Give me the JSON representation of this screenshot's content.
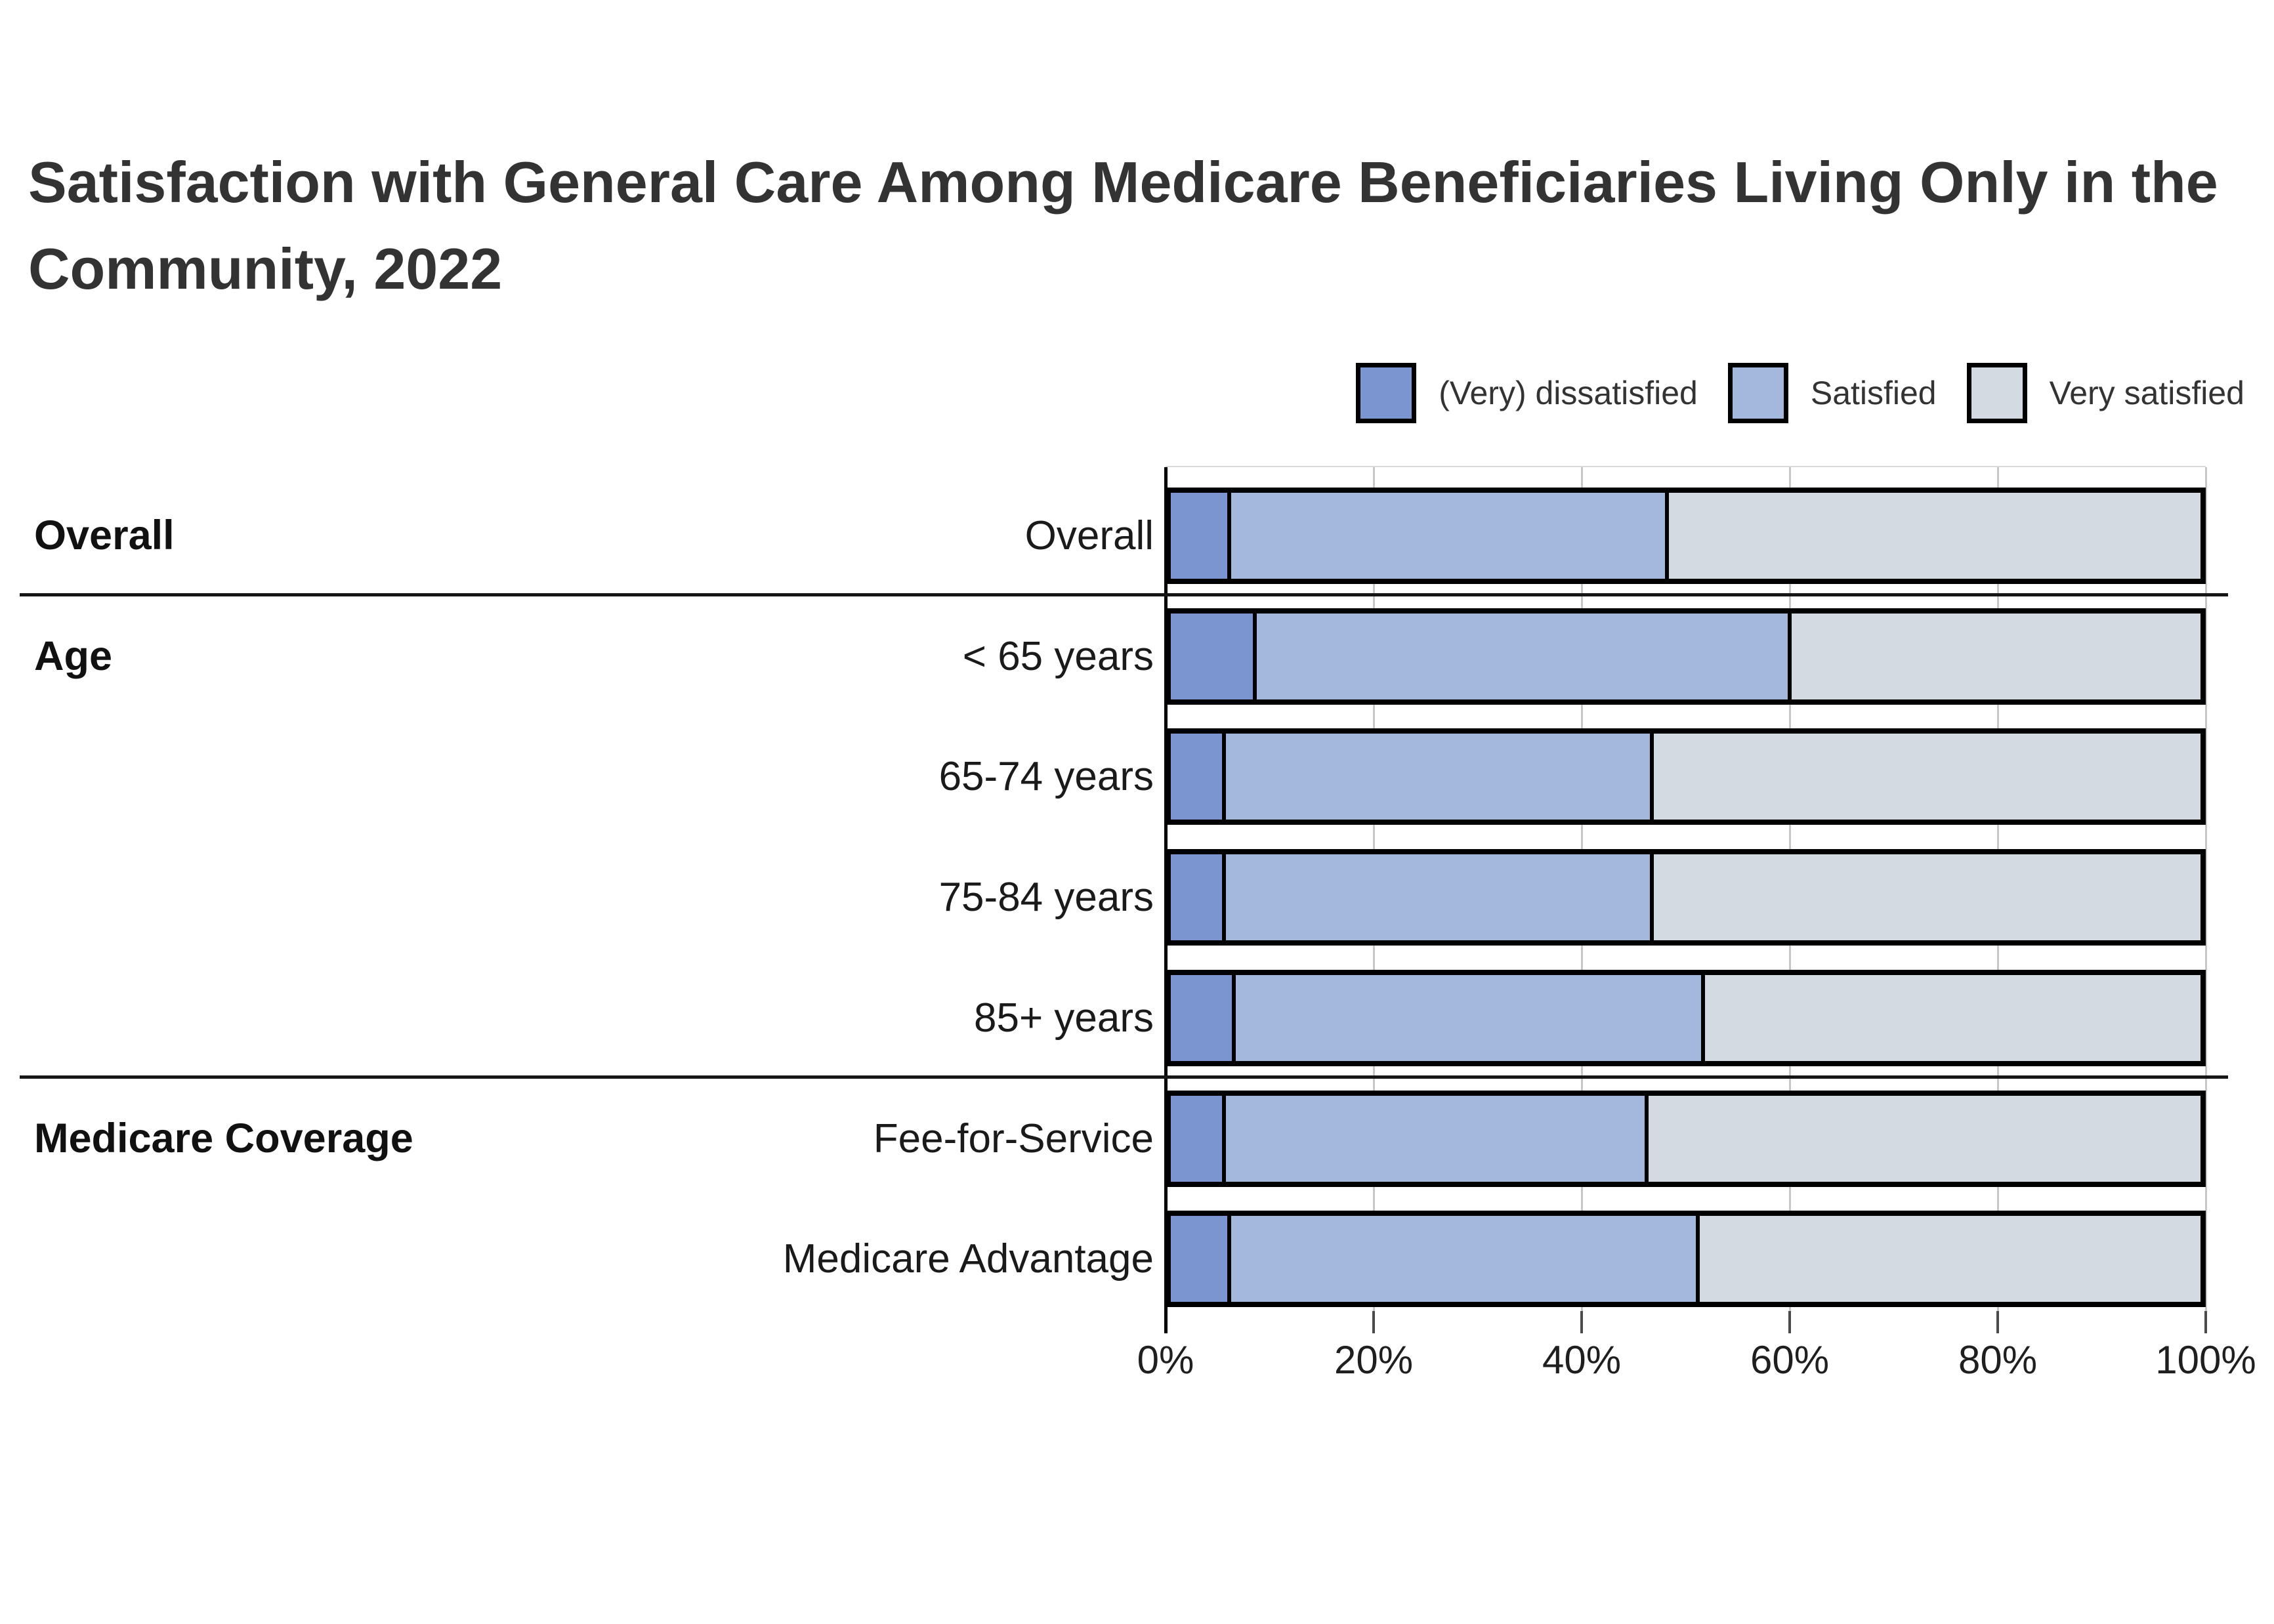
{
  "page": {
    "background": "#ffffff"
  },
  "title": {
    "full": "Satisfaction with General Care Among Medicare Beneficiaries Living Only in the Community, 2022",
    "line1": "Satisfaction with General Care Among Medicare Beneficiaries Living Only in the",
    "line2": "Community, 2022"
  },
  "legend": {
    "items": [
      {
        "label": "(Very) dissatisfied",
        "color": "#7a95d0"
      },
      {
        "label": "Satisfied",
        "color": "#a3b8dc"
      },
      {
        "label": "Very satisfied",
        "color": "#d4dae2"
      }
    ]
  },
  "x_axis": {
    "tick_labels": [
      "0%",
      "20%",
      "40%",
      "60%",
      "80%",
      "100%"
    ],
    "tick_values": [
      0,
      20,
      40,
      60,
      80,
      100
    ]
  },
  "groups": [
    {
      "label": "Overall",
      "first_row": 0
    },
    {
      "label": "Age",
      "first_row": 1
    },
    {
      "label": "Medicare Coverage",
      "first_row": 5
    }
  ],
  "colors": {
    "dissatisfied": "#7a95d0",
    "satisfied": "#a3b8dc",
    "very_satisfied": "#d4dae2",
    "bar_border": "#000000",
    "gridline": "#c7c7c7",
    "separator": "#161616",
    "title_text": "#333333"
  },
  "chart_data": {
    "type": "bar",
    "orientation": "horizontal",
    "stacked": true,
    "unit": "%",
    "title": "Satisfaction with General Care Among Medicare Beneficiaries Living Only in the Community, 2022",
    "categories": [
      "Overall",
      "< 65 years",
      "65-74 years",
      "75-84 years",
      "85+ years",
      "Fee-for-Service",
      "Medicare Advantage"
    ],
    "category_groups": [
      "Overall",
      "Age",
      "Age",
      "Age",
      "Age",
      "Medicare Coverage",
      "Medicare Coverage"
    ],
    "series": [
      {
        "name": "(Very) dissatisfied",
        "color": "#7a95d0",
        "values": [
          5.5,
          8,
          5,
          5,
          6,
          5,
          5.5
        ]
      },
      {
        "name": "Satisfied",
        "color": "#a3b8dc",
        "values": [
          42.5,
          52,
          41.5,
          41.5,
          45.5,
          41,
          45.5
        ]
      },
      {
        "name": "Very satisfied",
        "color": "#d4dae2",
        "values": [
          52,
          40,
          53.5,
          53.5,
          48.5,
          54,
          49
        ]
      }
    ],
    "xlim": [
      0,
      100
    ],
    "xlabel": "",
    "ylabel": "",
    "gridlines": true,
    "legend_position": "top-right"
  }
}
